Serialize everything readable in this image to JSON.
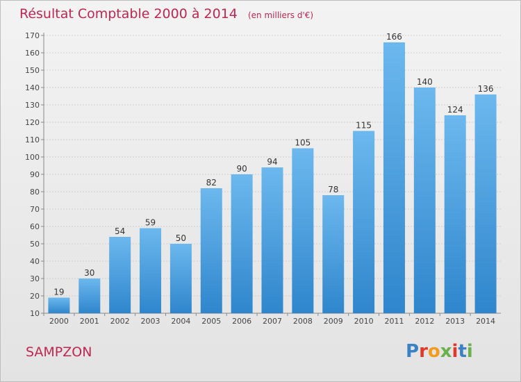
{
  "chart_data": {
    "type": "bar",
    "title": "Résultat Comptable 2000 à 2014",
    "unit_note": "(en milliers d'€)",
    "categories": [
      "2000",
      "2001",
      "2002",
      "2003",
      "2004",
      "2005",
      "2006",
      "2007",
      "2008",
      "2009",
      "2010",
      "2011",
      "2012",
      "2013",
      "2014"
    ],
    "values": [
      19,
      30,
      54,
      59,
      50,
      82,
      90,
      94,
      105,
      78,
      115,
      166,
      140,
      124,
      136
    ],
    "ylim": [
      10,
      170
    ],
    "yticks": [
      10,
      20,
      30,
      40,
      50,
      60,
      70,
      80,
      90,
      100,
      110,
      120,
      130,
      140,
      150,
      160,
      170
    ],
    "grid": true,
    "legend": "none",
    "bar_color_light": "#6cb8ee",
    "bar_color_dark": "#2f86cc"
  },
  "footer": {
    "commune": "SAMPZON",
    "brand": "Proxiti"
  },
  "colors": {
    "title": "#c0264f",
    "brand_letters": [
      "#3b82c4",
      "#e0392b",
      "#f29b1d",
      "#6ab04c",
      "#e0392b",
      "#3b82c4",
      "#6ab04c"
    ]
  }
}
